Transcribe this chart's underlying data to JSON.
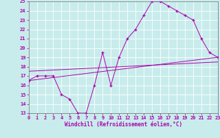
{
  "xlabel": "Windchill (Refroidissement éolien,°C)",
  "bg_color": "#c8ecec",
  "grid_color": "#ffffff",
  "line_color": "#aa00aa",
  "xmin": 0,
  "xmax": 23,
  "ymin": 13,
  "ymax": 25,
  "line1_x": [
    0,
    1,
    2,
    3,
    4,
    5,
    6,
    7,
    8,
    9,
    10,
    11,
    12,
    13,
    14,
    15,
    16,
    17,
    18,
    19,
    20,
    21,
    22,
    23
  ],
  "line1_y": [
    16.5,
    17.0,
    17.0,
    17.0,
    15.0,
    14.5,
    13.0,
    13.0,
    16.0,
    19.5,
    16.0,
    19.0,
    21.0,
    22.0,
    23.5,
    25.0,
    25.0,
    24.5,
    24.0,
    23.5,
    23.0,
    21.0,
    19.5,
    19.0
  ],
  "line2_x": [
    0,
    23
  ],
  "line2_y": [
    16.5,
    19.0
  ],
  "line3_x": [
    0,
    23
  ],
  "line3_y": [
    17.5,
    18.5
  ],
  "yticks": [
    13,
    14,
    15,
    16,
    17,
    18,
    19,
    20,
    21,
    22,
    23,
    24,
    25
  ],
  "xticks": [
    0,
    1,
    2,
    3,
    4,
    5,
    6,
    7,
    8,
    9,
    10,
    11,
    12,
    13,
    14,
    15,
    16,
    17,
    18,
    19,
    20,
    21,
    22,
    23
  ]
}
